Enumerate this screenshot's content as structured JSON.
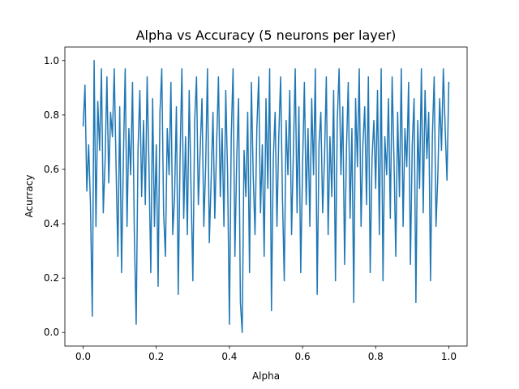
{
  "chart_data": {
    "type": "line",
    "title": "Alpha vs Accuracy (5 neurons per layer)",
    "xlabel": "Alpha",
    "ylabel": "Acurracy",
    "xlim": [
      -0.05,
      1.05
    ],
    "ylim": [
      -0.05,
      1.05
    ],
    "xticks": [
      0.0,
      0.2,
      0.4,
      0.6,
      0.8,
      1.0
    ],
    "xtick_labels": [
      "0.0",
      "0.2",
      "0.4",
      "0.6",
      "0.8",
      "1.0"
    ],
    "yticks": [
      0.0,
      0.2,
      0.4,
      0.6,
      0.8,
      1.0
    ],
    "ytick_labels": [
      "0.0",
      "0.2",
      "0.4",
      "0.6",
      "0.8",
      "1.0"
    ],
    "grid": false,
    "legend": "none",
    "series": [
      {
        "color": "#1f77b4",
        "x": [
          0.0,
          0.005,
          0.01,
          0.015,
          0.02,
          0.025,
          0.03,
          0.035,
          0.04,
          0.045,
          0.05,
          0.055,
          0.06,
          0.065,
          0.07,
          0.075,
          0.08,
          0.085,
          0.09,
          0.095,
          0.1,
          0.105,
          0.11,
          0.115,
          0.12,
          0.125,
          0.13,
          0.135,
          0.14,
          0.145,
          0.15,
          0.155,
          0.16,
          0.165,
          0.17,
          0.175,
          0.18,
          0.185,
          0.19,
          0.195,
          0.2,
          0.205,
          0.21,
          0.215,
          0.22,
          0.225,
          0.23,
          0.235,
          0.24,
          0.245,
          0.25,
          0.255,
          0.26,
          0.265,
          0.27,
          0.275,
          0.28,
          0.285,
          0.29,
          0.295,
          0.3,
          0.305,
          0.31,
          0.315,
          0.32,
          0.325,
          0.33,
          0.335,
          0.34,
          0.345,
          0.35,
          0.355,
          0.36,
          0.365,
          0.37,
          0.375,
          0.38,
          0.385,
          0.39,
          0.395,
          0.4,
          0.405,
          0.41,
          0.415,
          0.42,
          0.425,
          0.43,
          0.435,
          0.44,
          0.445,
          0.45,
          0.455,
          0.46,
          0.465,
          0.47,
          0.475,
          0.48,
          0.485,
          0.49,
          0.495,
          0.5,
          0.505,
          0.51,
          0.515,
          0.52,
          0.525,
          0.53,
          0.535,
          0.54,
          0.545,
          0.55,
          0.555,
          0.56,
          0.565,
          0.57,
          0.575,
          0.58,
          0.585,
          0.59,
          0.595,
          0.6,
          0.605,
          0.61,
          0.615,
          0.62,
          0.625,
          0.63,
          0.635,
          0.64,
          0.645,
          0.65,
          0.655,
          0.66,
          0.665,
          0.67,
          0.675,
          0.68,
          0.685,
          0.69,
          0.695,
          0.7,
          0.705,
          0.71,
          0.715,
          0.72,
          0.725,
          0.73,
          0.735,
          0.74,
          0.745,
          0.75,
          0.755,
          0.76,
          0.765,
          0.77,
          0.775,
          0.78,
          0.785,
          0.79,
          0.795,
          0.8,
          0.805,
          0.81,
          0.815,
          0.82,
          0.825,
          0.83,
          0.835,
          0.84,
          0.845,
          0.85,
          0.855,
          0.86,
          0.865,
          0.87,
          0.875,
          0.88,
          0.885,
          0.89,
          0.895,
          0.9,
          0.905,
          0.91,
          0.915,
          0.92,
          0.925,
          0.93,
          0.935,
          0.94,
          0.945,
          0.95,
          0.955,
          0.96,
          0.965,
          0.97,
          0.975,
          0.98,
          0.985,
          0.99,
          0.995,
          1.0
        ],
        "y": [
          0.76,
          0.91,
          0.52,
          0.69,
          0.47,
          0.06,
          1.0,
          0.39,
          0.85,
          0.67,
          0.97,
          0.44,
          0.63,
          0.94,
          0.55,
          0.81,
          0.72,
          0.97,
          0.61,
          0.28,
          0.83,
          0.22,
          0.64,
          0.97,
          0.39,
          0.75,
          0.58,
          0.92,
          0.36,
          0.03,
          0.67,
          0.89,
          0.5,
          0.78,
          0.47,
          0.94,
          0.61,
          0.22,
          0.86,
          0.39,
          0.69,
          0.17,
          0.81,
          0.97,
          0.44,
          0.28,
          0.75,
          0.58,
          0.92,
          0.36,
          0.5,
          0.83,
          0.14,
          0.64,
          0.97,
          0.42,
          0.72,
          0.36,
          0.89,
          0.53,
          0.19,
          0.78,
          0.94,
          0.47,
          0.67,
          0.86,
          0.39,
          0.61,
          0.97,
          0.33,
          0.56,
          0.81,
          0.42,
          0.69,
          0.94,
          0.5,
          0.75,
          0.39,
          0.89,
          0.58,
          0.03,
          0.72,
          0.97,
          0.28,
          0.64,
          0.86,
          0.11,
          0.0,
          0.67,
          0.5,
          0.81,
          0.22,
          0.92,
          0.58,
          0.36,
          0.75,
          0.94,
          0.44,
          0.69,
          0.28,
          0.86,
          0.53,
          0.97,
          0.08,
          0.64,
          0.81,
          0.39,
          0.72,
          0.94,
          0.5,
          0.19,
          0.78,
          0.58,
          0.89,
          0.36,
          0.67,
          0.97,
          0.44,
          0.83,
          0.22,
          0.61,
          0.92,
          0.47,
          0.75,
          0.39,
          0.86,
          0.58,
          0.97,
          0.14,
          0.69,
          0.81,
          0.44,
          0.64,
          0.94,
          0.36,
          0.72,
          0.5,
          0.89,
          0.19,
          0.78,
          0.97,
          0.58,
          0.83,
          0.25,
          0.67,
          0.92,
          0.42,
          0.75,
          0.11,
          0.86,
          0.61,
          0.97,
          0.39,
          0.69,
          0.83,
          0.47,
          0.94,
          0.22,
          0.64,
          0.78,
          0.53,
          0.89,
          0.36,
          0.97,
          0.19,
          0.72,
          0.58,
          0.86,
          0.42,
          0.94,
          0.64,
          0.28,
          0.81,
          0.5,
          0.97,
          0.39,
          0.75,
          0.61,
          0.92,
          0.25,
          0.69,
          0.86,
          0.11,
          0.78,
          0.53,
          0.97,
          0.44,
          0.89,
          0.64,
          0.81,
          0.19,
          0.72,
          0.94,
          0.39,
          0.58,
          0.86,
          0.67,
          0.97,
          0.75,
          0.56,
          0.92
        ]
      }
    ]
  }
}
